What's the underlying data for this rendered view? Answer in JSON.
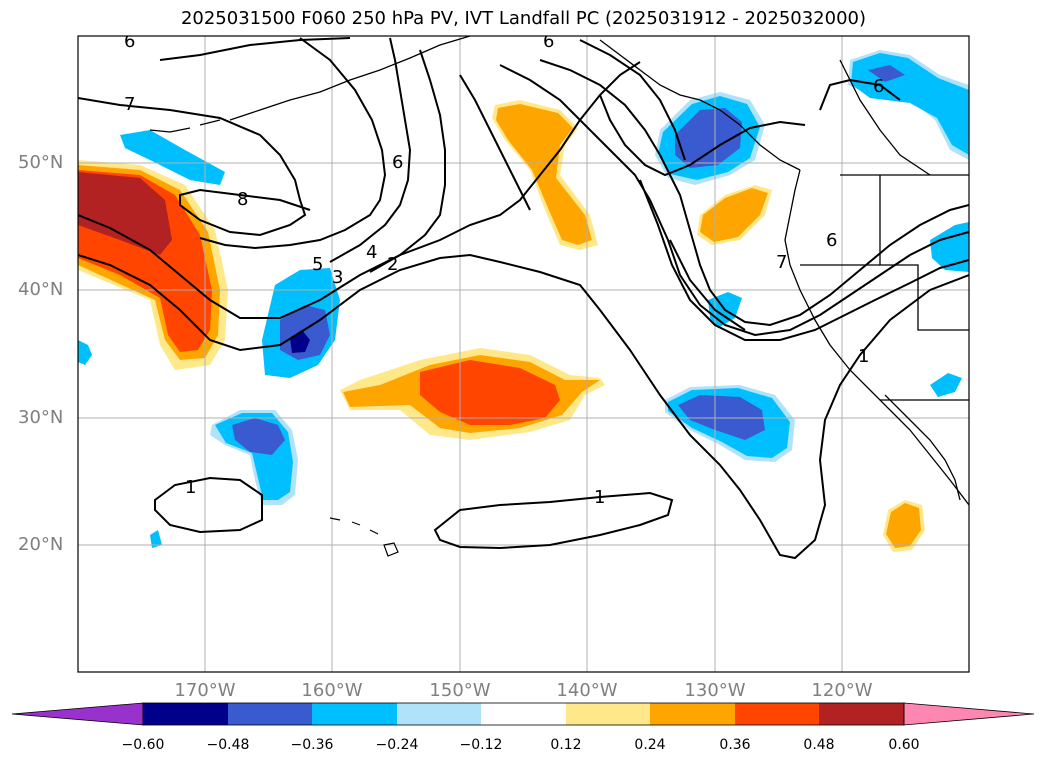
{
  "title": "2025031500 F060 250 hPa PV, IVT Landfall PC (2025031912 - 2025032000)",
  "axes": {
    "lat_labels": [
      "50°N",
      "40°N",
      "30°N",
      "20°N"
    ],
    "lon_labels": [
      "170°W",
      "160°W",
      "150°W",
      "140°W",
      "130°W",
      "120°W"
    ],
    "gridlines": true
  },
  "colorbar": {
    "tick_labels": [
      "−0.60",
      "−0.48",
      "−0.36",
      "−0.24",
      "−0.12",
      "0.12",
      "0.24",
      "0.36",
      "0.48",
      "0.60"
    ],
    "colors": [
      "#9932cc",
      "#00008b",
      "#3a5bcf",
      "#00bfff",
      "#b0e2fa",
      "#ffffff",
      "#ffe88a",
      "#ffa500",
      "#ff4500",
      "#b22222",
      "#ff86b0"
    ],
    "extend": "both"
  },
  "contour_labels": [
    "6",
    "6",
    "7",
    "6",
    "8",
    "6",
    "5",
    "4",
    "3",
    "2",
    "6",
    "7",
    "1",
    "1",
    "1"
  ],
  "fill_colors": {
    "dark_red": "#b22222",
    "red_orange": "#ff4500",
    "orange": "#ffa500",
    "yellow": "#ffe88a",
    "light_blue": "#b0e2fa",
    "cyan": "#00bfff",
    "royal_blue": "#3a5bcf",
    "navy": "#00008b"
  }
}
